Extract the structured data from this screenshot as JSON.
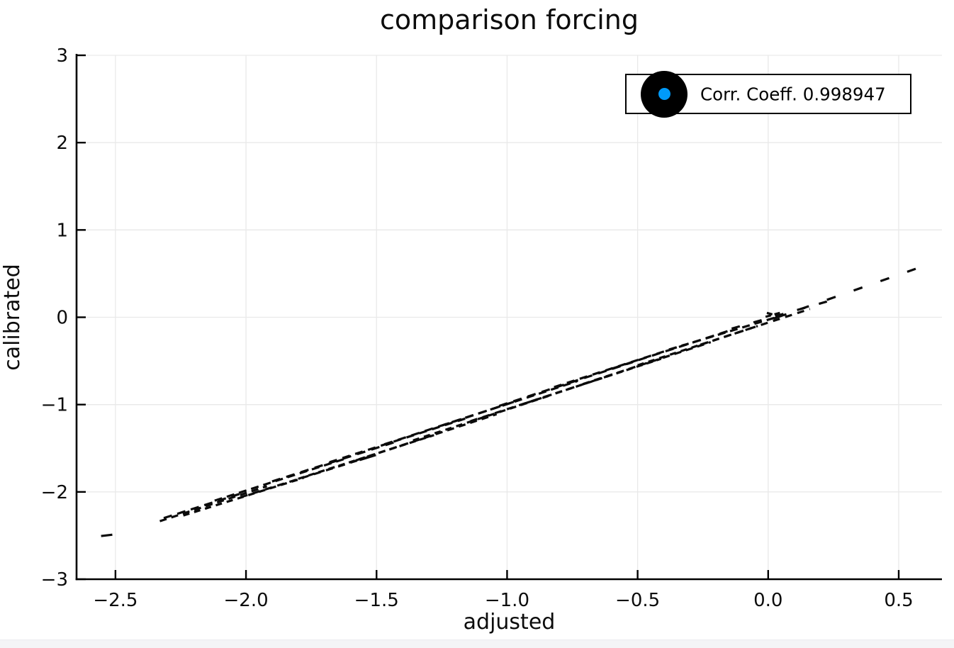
{
  "chart_data": {
    "type": "line",
    "title": "comparison forcing",
    "xlabel": "adjusted",
    "ylabel": "calibrated",
    "xlim": [
      -2.649,
      0.6656
    ],
    "ylim": [
      -3,
      3
    ],
    "grid": true,
    "grid_color": "#e9e9e9",
    "axis_color": "#000000",
    "xticks": {
      "values": [
        -2.5,
        -2.0,
        -1.5,
        -1.0,
        -0.5,
        0.0,
        0.5
      ],
      "labels": [
        "−2.5",
        "−2.0",
        "−1.5",
        "−1.0",
        "−0.5",
        "0.0",
        "0.5"
      ]
    },
    "yticks": {
      "values": [
        -3,
        -2,
        -1,
        0,
        1,
        2,
        3
      ],
      "labels": [
        "−3",
        "−2",
        "−1",
        "0",
        "1",
        "2",
        "3"
      ]
    },
    "legend": {
      "position": "top-right",
      "label": "Corr. Coeff. 0.998947",
      "marker_fill": "#000000",
      "marker_dot_color": "#009af9"
    },
    "correlation_coefficient": 0.998947,
    "trend_note": "dashed black segments tracing y ≈ x from (−2.55, −2.51) to (0.56, 0.55)",
    "series": [
      {
        "name": "comparison",
        "style": "dashed",
        "color": "#0b0b0b",
        "stroke_width": 3.2,
        "segments": [
          [
            -2.555,
            -2.505,
            -2.512,
            -2.49,
            24,
            1
          ],
          [
            -2.33,
            -2.335,
            -1.92,
            -1.935,
            10,
            7
          ],
          [
            -2.315,
            -2.3,
            -2.0,
            -2.0,
            12,
            8
          ],
          [
            -2.24,
            -2.27,
            -1.78,
            -1.84,
            9,
            7
          ],
          [
            -2.12,
            -2.1,
            -1.62,
            -1.62,
            11,
            7
          ],
          [
            -2.02,
            -2.06,
            -1.52,
            -1.59,
            10,
            8
          ],
          [
            -1.9,
            -1.88,
            -1.42,
            -1.42,
            12,
            9
          ],
          [
            -1.8,
            -1.85,
            -1.28,
            -1.35,
            9,
            6
          ],
          [
            -1.68,
            -1.66,
            -1.16,
            -1.16,
            11,
            8
          ],
          [
            -1.58,
            -1.64,
            -1.04,
            -1.11,
            10,
            7
          ],
          [
            -1.47,
            -1.455,
            -0.95,
            -0.945,
            12,
            8
          ],
          [
            -1.36,
            -1.41,
            -0.84,
            -0.9,
            9,
            7
          ],
          [
            -1.25,
            -1.24,
            -0.73,
            -0.73,
            11,
            7
          ],
          [
            -1.14,
            -1.19,
            -0.62,
            -0.68,
            10,
            8
          ],
          [
            -1.03,
            -1.015,
            -0.52,
            -0.515,
            12,
            9
          ],
          [
            -0.93,
            -0.985,
            -0.41,
            -0.475,
            9,
            6
          ],
          [
            -0.82,
            -0.8,
            -0.32,
            -0.315,
            11,
            8
          ],
          [
            -0.71,
            -0.765,
            -0.22,
            -0.285,
            10,
            7
          ],
          [
            -0.6,
            -0.59,
            -0.13,
            -0.135,
            12,
            8
          ],
          [
            -0.5,
            -0.55,
            -0.04,
            -0.1,
            9,
            7
          ],
          [
            -0.38,
            -0.37,
            0.07,
            0.035,
            11,
            7
          ],
          [
            -0.26,
            -0.315,
            0.16,
            0.095,
            10,
            8
          ],
          [
            -0.14,
            -0.13,
            0.225,
            0.18,
            12,
            20
          ],
          [
            0.02,
            -0.015,
            0.565,
            0.555,
            13,
            27
          ],
          [
            -1.565,
            -1.635,
            -1.5,
            -1.575,
            24,
            1
          ],
          [
            -0.005,
            0.05,
            0.045,
            0.01,
            8,
            5
          ],
          [
            -0.01,
            0.005,
            0.05,
            0.055,
            8,
            5
          ]
        ]
      }
    ]
  }
}
